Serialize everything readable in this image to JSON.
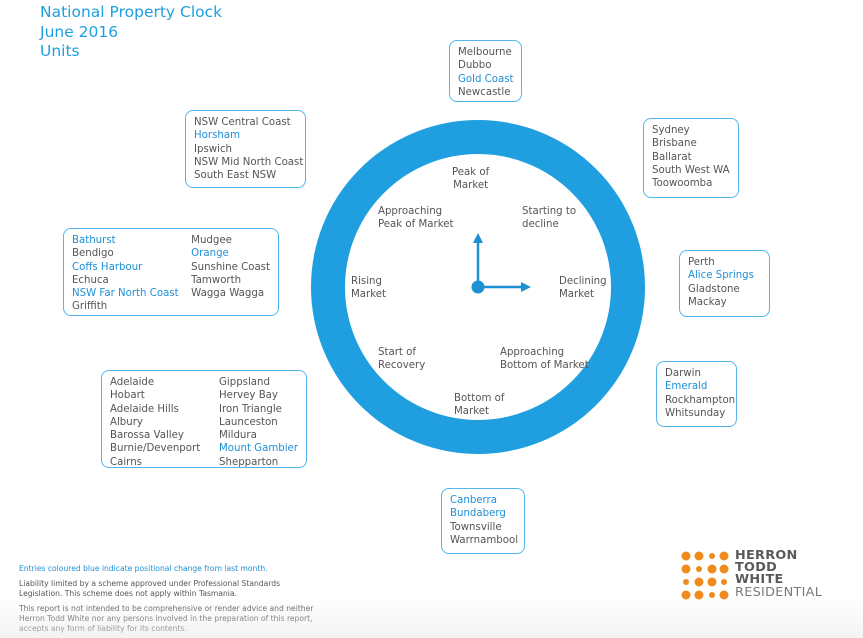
{
  "title": {
    "line1": "National Property Clock",
    "line2": "June 2016",
    "line3": "Units"
  },
  "phases": {
    "peak": [
      "Peak of",
      "Market"
    ],
    "starting_to_decline": [
      "Starting to",
      "decline"
    ],
    "declining": [
      "Declining",
      "Market"
    ],
    "approaching_bottom": [
      "Approaching",
      "Bottom of Market"
    ],
    "bottom": [
      "Bottom of",
      "Market"
    ],
    "start_recovery": [
      "Start of",
      "Recovery"
    ],
    "rising": [
      "Rising",
      "Market"
    ],
    "approaching_peak": [
      "Approaching",
      "Peak of Market"
    ]
  },
  "boxes": {
    "top": [
      "Melbourne",
      "Dubbo",
      "Gold Coast",
      "Newcastle"
    ],
    "top_highlight": [
      "Gold Coast"
    ],
    "top_right": [
      "Sydney",
      "Brisbane",
      "Ballarat",
      "South West WA",
      "Toowoomba"
    ],
    "right": [
      "Perth",
      "Alice Springs",
      "Gladstone",
      "Mackay"
    ],
    "right_highlight": [
      "Alice Springs"
    ],
    "lower_right": [
      "Darwin",
      "Emerald",
      "Rockhampton",
      "Whitsunday"
    ],
    "lower_right_highlight": [
      "Emerald"
    ],
    "bottom": [
      "Canberra",
      "Bundaberg",
      "Townsville",
      "Warrnambool"
    ],
    "bottom_highlight": [
      "Canberra",
      "Bundaberg"
    ],
    "lower_left_col1": [
      "Adelaide",
      "Hobart",
      "Adelaide Hills",
      "Albury",
      "Barossa Valley",
      "Burnie/Devenport",
      "Cairns"
    ],
    "lower_left_col2": [
      "Gippsland",
      "Hervey Bay",
      "Iron Triangle",
      "Launceston",
      "Mildura",
      "Mount Gambier",
      "Shepparton"
    ],
    "lower_left_highlight": [
      "Mount Gambier"
    ],
    "left_col1": [
      "Bathurst",
      "Bendigo",
      "Coffs Harbour",
      "Echuca",
      "NSW Far North Coast",
      "Griffith"
    ],
    "left_col2": [
      "Mudgee",
      "Orange",
      "Sunshine Coast",
      "Tamworth",
      "Wagga Wagga"
    ],
    "left_highlight": [
      "Bathurst",
      "Coffs Harbour",
      "NSW Far North Coast",
      "Orange"
    ],
    "upper_left": [
      "NSW Central Coast",
      "Horsham",
      "Ipswich",
      "NSW Mid North Coast",
      "South East NSW"
    ],
    "upper_left_highlight": [
      "Horsham"
    ]
  },
  "footer": {
    "note": "Entries coloured blue indicate positional change from last month.",
    "liability1": "Liability limited by a scheme approved under Professional Standards",
    "liability2": "Legislation. This scheme does not apply within Tasmania.",
    "disclaimer1": "This report is not intended to be comprehensive or render advice and neither",
    "disclaimer2": "Herron Todd White nor any persons involved in the preparation of this report,",
    "disclaimer3": "accepts any form of liability for its contents."
  },
  "logo": {
    "line1": "HERRON",
    "line2": "TODD",
    "line3": "WHITE",
    "line4": "RESIDENTIAL"
  },
  "colors": {
    "accent": "#1e9fe0",
    "ring": "#1f9fe0",
    "highlight": "#1f8fd6",
    "text": "#555555"
  }
}
